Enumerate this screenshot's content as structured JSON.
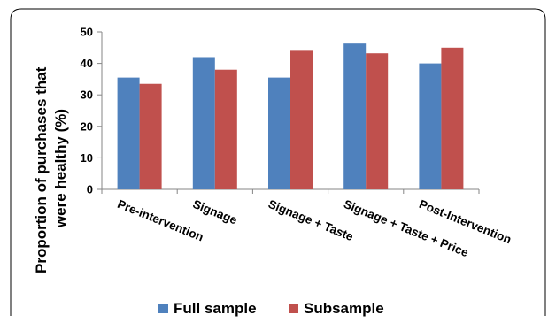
{
  "chart_data": {
    "type": "bar",
    "categories": [
      "Pre-intervention",
      "Signage",
      "Signage + Taste",
      "Signage + Taste + Price",
      "Post-Intervention"
    ],
    "series": [
      {
        "name": "Full sample",
        "values": [
          35.5,
          42,
          35.5,
          46.3,
          40
        ],
        "color": "#4F81BD"
      },
      {
        "name": "Subsample",
        "values": [
          33.5,
          38,
          44,
          43.2,
          45
        ],
        "color": "#C0504D"
      }
    ],
    "title": "",
    "xlabel": "",
    "ylabel_lines": [
      "Proportion of purchases that",
      "were healthy (%)"
    ],
    "ylim": [
      0,
      50
    ],
    "yticks": [
      "0",
      "10",
      "20",
      "30",
      "40",
      "50"
    ],
    "grid": false,
    "legend_position": "bottom"
  }
}
